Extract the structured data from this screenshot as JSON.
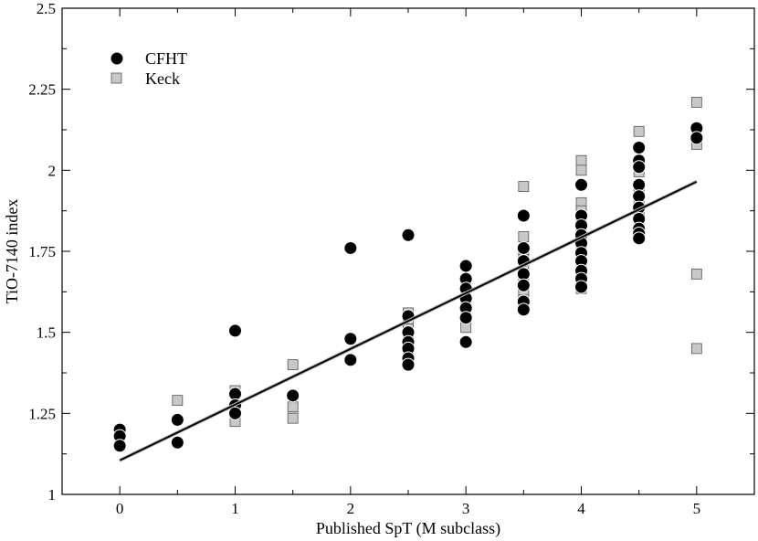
{
  "chart_data": {
    "type": "scatter",
    "xlabel": "Published SpT (M subclass)",
    "ylabel": "TiO-7140 index",
    "xlim": [
      -0.5,
      5.5
    ],
    "ylim": [
      1,
      2.5
    ],
    "xticks": [
      0,
      1,
      2,
      3,
      4,
      5
    ],
    "yticks": [
      1,
      1.25,
      1.5,
      1.75,
      2,
      2.25,
      2.5
    ],
    "xtick_labels": [
      "0",
      "1",
      "2",
      "3",
      "4",
      "5"
    ],
    "ytick_labels": [
      "1",
      "1.25",
      "1.5",
      "1.75",
      "2",
      "2.25",
      "2.5"
    ],
    "grid": false,
    "legend_position": "top-left",
    "series": [
      {
        "name": "CFHT",
        "marker": "circle",
        "color": "#000000",
        "points": [
          [
            0,
            1.2
          ],
          [
            0,
            1.18
          ],
          [
            0,
            1.15
          ],
          [
            0.5,
            1.23
          ],
          [
            0.5,
            1.16
          ],
          [
            1,
            1.505
          ],
          [
            1,
            1.31
          ],
          [
            1,
            1.275
          ],
          [
            1,
            1.25
          ],
          [
            1.5,
            1.305
          ],
          [
            2,
            1.76
          ],
          [
            2,
            1.48
          ],
          [
            2,
            1.415
          ],
          [
            2.5,
            1.8
          ],
          [
            2.5,
            1.55
          ],
          [
            2.5,
            1.5
          ],
          [
            2.5,
            1.47
          ],
          [
            2.5,
            1.45
          ],
          [
            2.5,
            1.42
          ],
          [
            2.5,
            1.4
          ],
          [
            3,
            1.705
          ],
          [
            3,
            1.665
          ],
          [
            3,
            1.635
          ],
          [
            3,
            1.605
          ],
          [
            3,
            1.575
          ],
          [
            3,
            1.545
          ],
          [
            3,
            1.47
          ],
          [
            3.5,
            1.86
          ],
          [
            3.5,
            1.76
          ],
          [
            3.5,
            1.72
          ],
          [
            3.5,
            1.68
          ],
          [
            3.5,
            1.645
          ],
          [
            3.5,
            1.595
          ],
          [
            3.5,
            1.57
          ],
          [
            4,
            1.955
          ],
          [
            4,
            1.86
          ],
          [
            4,
            1.83
          ],
          [
            4,
            1.8
          ],
          [
            4,
            1.775
          ],
          [
            4,
            1.745
          ],
          [
            4,
            1.72
          ],
          [
            4,
            1.69
          ],
          [
            4,
            1.665
          ],
          [
            4,
            1.64
          ],
          [
            4.5,
            2.07
          ],
          [
            4.5,
            2.03
          ],
          [
            4.5,
            2.01
          ],
          [
            4.5,
            1.955
          ],
          [
            4.5,
            1.92
          ],
          [
            4.5,
            1.885
          ],
          [
            4.5,
            1.85
          ],
          [
            4.5,
            1.82
          ],
          [
            4.5,
            1.805
          ],
          [
            4.5,
            1.79
          ],
          [
            5,
            2.13
          ],
          [
            5,
            2.1
          ]
        ]
      },
      {
        "name": "Keck",
        "marker": "square",
        "color": "#c8c8c8",
        "points": [
          [
            0.5,
            1.29
          ],
          [
            1,
            1.32
          ],
          [
            1,
            1.225
          ],
          [
            1.5,
            1.4
          ],
          [
            1.5,
            1.27
          ],
          [
            1.5,
            1.235
          ],
          [
            2.5,
            1.56
          ],
          [
            2.5,
            1.53
          ],
          [
            2.5,
            1.51
          ],
          [
            2.5,
            1.49
          ],
          [
            2.5,
            1.465
          ],
          [
            2.5,
            1.435
          ],
          [
            2.5,
            1.415
          ],
          [
            3,
            1.66
          ],
          [
            3,
            1.62
          ],
          [
            3,
            1.59
          ],
          [
            3,
            1.565
          ],
          [
            3,
            1.54
          ],
          [
            3,
            1.515
          ],
          [
            3.5,
            1.95
          ],
          [
            3.5,
            1.795
          ],
          [
            3.5,
            1.755
          ],
          [
            3.5,
            1.725
          ],
          [
            3.5,
            1.7
          ],
          [
            3.5,
            1.67
          ],
          [
            3.5,
            1.615
          ],
          [
            3.5,
            1.6
          ],
          [
            4,
            2.03
          ],
          [
            4,
            2.0
          ],
          [
            4,
            1.9
          ],
          [
            4,
            1.875
          ],
          [
            4,
            1.845
          ],
          [
            4,
            1.825
          ],
          [
            4,
            1.8
          ],
          [
            4,
            1.775
          ],
          [
            4,
            1.71
          ],
          [
            4,
            1.685
          ],
          [
            4,
            1.66
          ],
          [
            4,
            1.635
          ],
          [
            4.5,
            2.12
          ],
          [
            4.5,
            1.995
          ],
          [
            4.5,
            1.945
          ],
          [
            4.5,
            1.91
          ],
          [
            4.5,
            1.88
          ],
          [
            4.5,
            1.85
          ],
          [
            5,
            2.21
          ],
          [
            5,
            2.08
          ],
          [
            5,
            1.68
          ],
          [
            5,
            1.45
          ]
        ]
      }
    ],
    "fit_line": {
      "points": [
        [
          0,
          1.105
        ],
        [
          5,
          1.965
        ]
      ],
      "color": "#000000"
    }
  }
}
